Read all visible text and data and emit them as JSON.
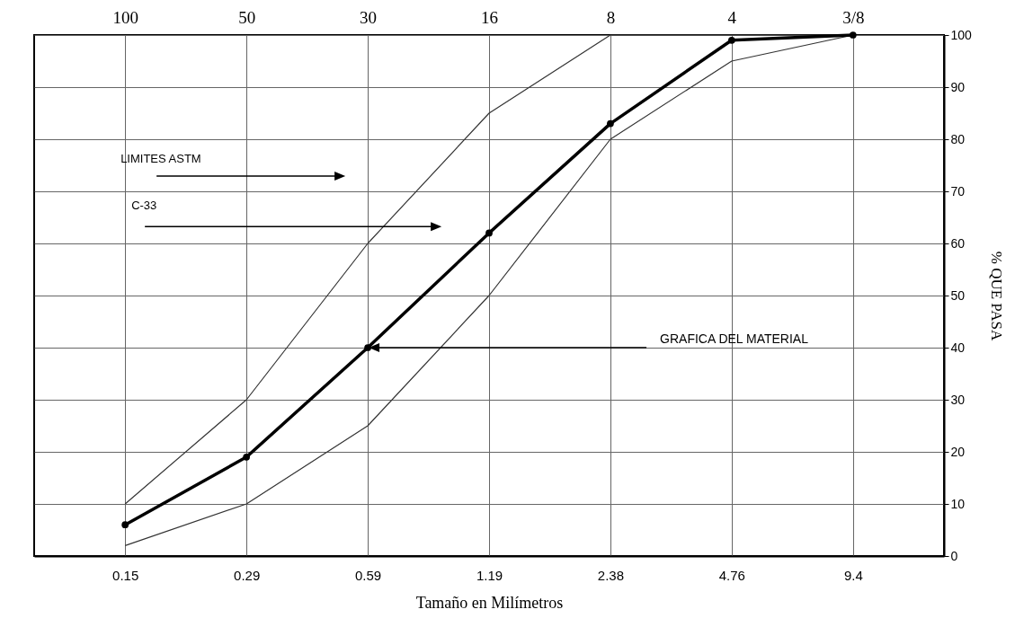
{
  "chart_data": {
    "type": "line",
    "xlabel": "Tamaño en Milímetros",
    "ylabel": "% QUE PASA",
    "categories": [
      "0.15",
      "0.29",
      "0.59",
      "1.19",
      "2.38",
      "4.76",
      "9.4"
    ],
    "series": [
      {
        "color": "#333333",
        "values": [
          10,
          30,
          60,
          85,
          100,
          100,
          100
        ]
      },
      {
        "color": "#333333",
        "values": [
          2,
          10,
          25,
          50,
          80,
          95,
          100
        ]
      },
      {
        "color": "#000000",
        "marker": "circle",
        "values": [
          6,
          19,
          40,
          62,
          83,
          99,
          100
        ]
      }
    ],
    "ylim": [
      0,
      100
    ],
    "yticks": [
      0,
      10,
      20,
      30,
      40,
      50,
      60,
      70,
      80,
      90,
      100
    ],
    "grid": true,
    "legend": false,
    "annotations": [
      "100",
      "50",
      "30",
      "16",
      "8",
      "4",
      "3/8",
      "LIMITES ASTM",
      "C-33",
      {
        "text": "GRAFICA DEL MATERIAL",
        "x": "0.59",
        "y": 40
      }
    ]
  }
}
